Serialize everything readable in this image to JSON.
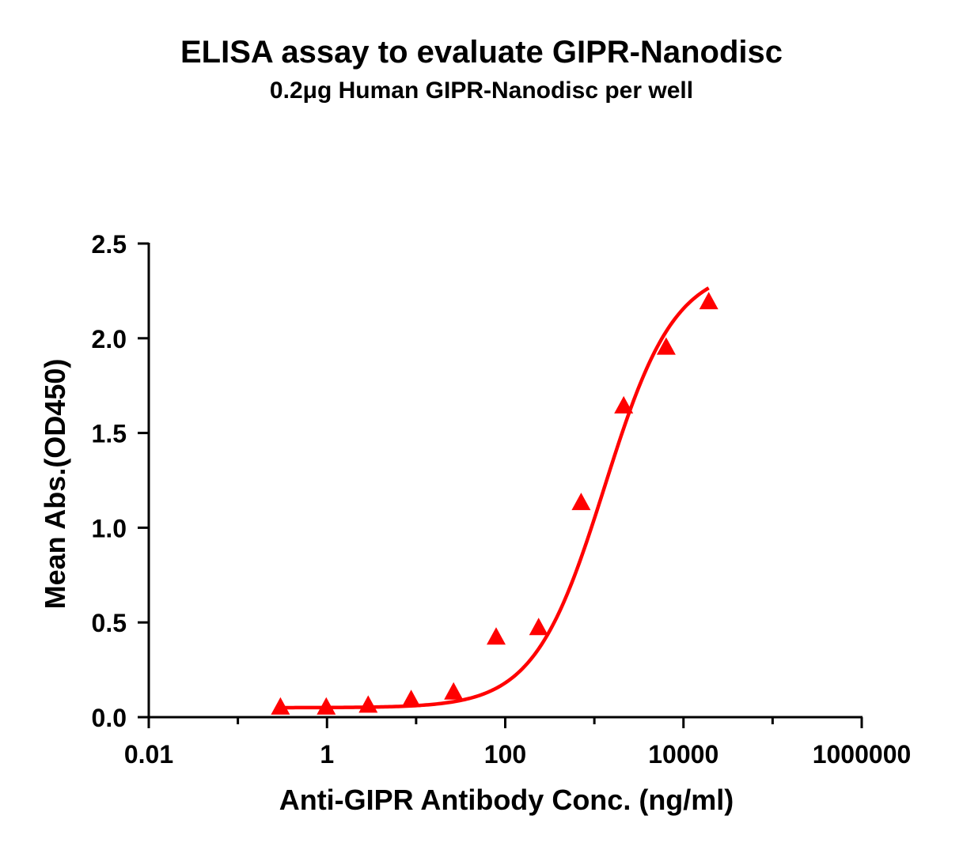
{
  "chart_data": {
    "type": "scatter",
    "title": "ELISA assay to evaluate GIPR-Nanodisc",
    "subtitle": "0.2μg Human GIPR-Nanodisc per well",
    "xlabel": "Anti-GIPR Antibody Conc. (ng/ml)",
    "ylabel": "Mean Abs.(OD450)",
    "x_scale": "log",
    "xlim": [
      0.01,
      1000000
    ],
    "ylim": [
      0,
      2.5
    ],
    "x_ticks": [
      {
        "value": 0.01,
        "label": "0.01"
      },
      {
        "value": 1,
        "label": "1"
      },
      {
        "value": 100,
        "label": "100"
      },
      {
        "value": 10000,
        "label": "10000"
      },
      {
        "value": 1000000,
        "label": "1000000"
      }
    ],
    "y_ticks": [
      {
        "value": 0,
        "label": "0.0"
      },
      {
        "value": 0.5,
        "label": "0.5"
      },
      {
        "value": 1.0,
        "label": "1.0"
      },
      {
        "value": 1.5,
        "label": "1.5"
      },
      {
        "value": 2.0,
        "label": "2.0"
      },
      {
        "value": 2.5,
        "label": "2.5"
      }
    ],
    "grid": false,
    "series": [
      {
        "color": "#ff0000",
        "marker": "triangle",
        "fit": "4PL sigmoid",
        "x": [
          0.3,
          0.98,
          2.9,
          8.8,
          26.3,
          79,
          237,
          711,
          2133,
          6400,
          19200
        ],
        "y": [
          0.05,
          0.05,
          0.06,
          0.09,
          0.13,
          0.42,
          0.47,
          1.13,
          1.64,
          1.95,
          2.19
        ]
      }
    ]
  }
}
